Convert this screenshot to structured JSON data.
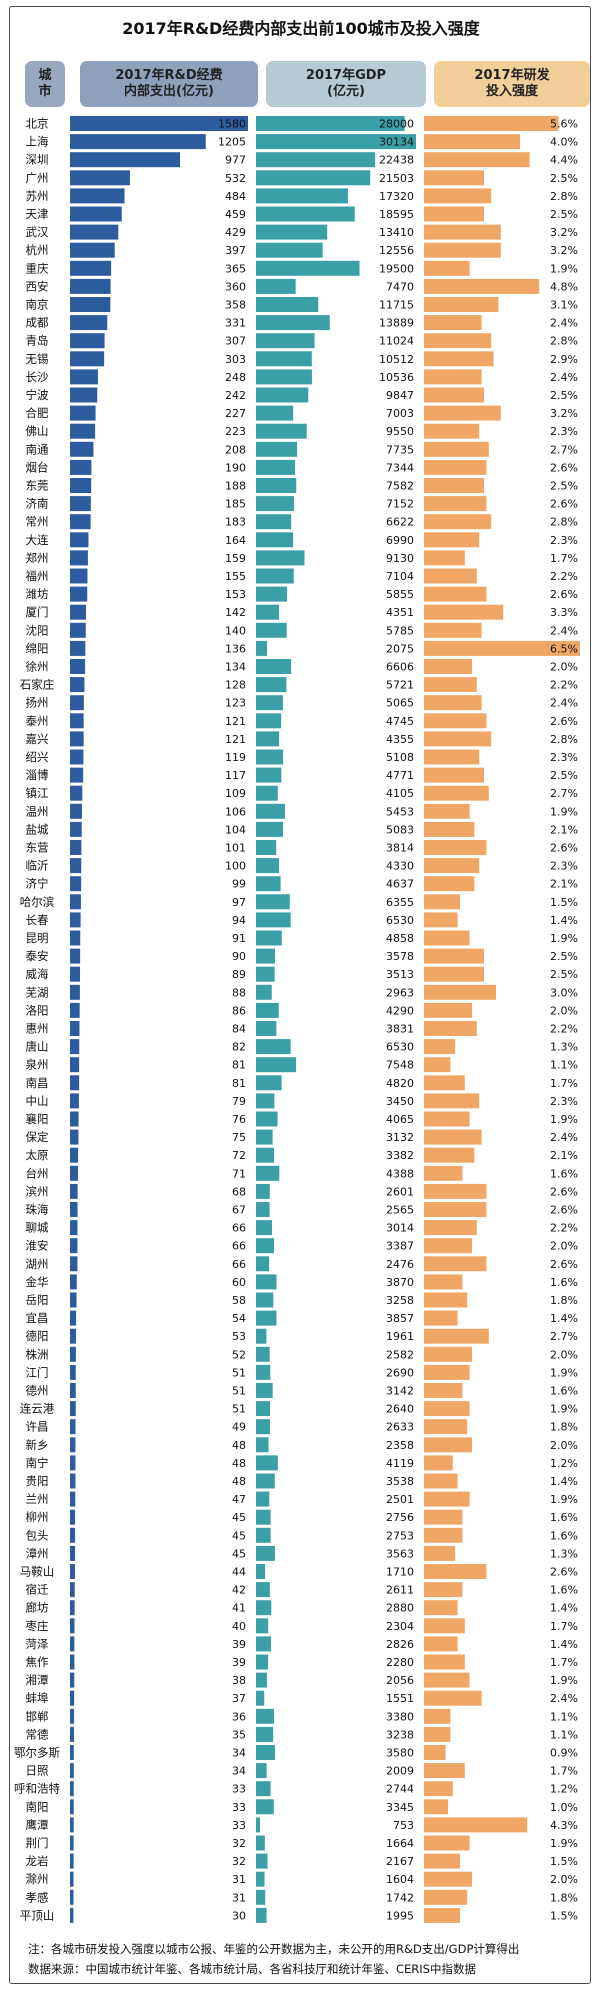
{
  "title": "2017年R&D经费内部支出前100城市及投入强度",
  "headers": {
    "city": "城\n市",
    "rd": "2017年R&D经费\n内部支出(亿元)",
    "gdp": "2017年GDP\n(亿元)",
    "intensity": "2017年研发\n投入强度"
  },
  "colors": {
    "rd_bar": "#2d5c9e",
    "gdp_bar": "#3b9fa8",
    "intensity_bar": "#f0a766"
  },
  "chart_data": {
    "type": "bar",
    "title": "2017年R&D经费内部支出前100城市及投入强度",
    "categories": [
      "北京",
      "上海",
      "深圳",
      "广州",
      "苏州",
      "天津",
      "武汉",
      "杭州",
      "重庆",
      "西安",
      "南京",
      "成都",
      "青岛",
      "无锡",
      "长沙",
      "宁波",
      "合肥",
      "佛山",
      "南通",
      "烟台",
      "东莞",
      "济南",
      "常州",
      "大连",
      "郑州",
      "福州",
      "潍坊",
      "厦门",
      "沈阳",
      "绵阳",
      "徐州",
      "石家庄",
      "扬州",
      "泰州",
      "嘉兴",
      "绍兴",
      "淄博",
      "镇江",
      "温州",
      "盐城",
      "东营",
      "临沂",
      "济宁",
      "哈尔滨",
      "长春",
      "昆明",
      "泰安",
      "威海",
      "芜湖",
      "洛阳",
      "惠州",
      "唐山",
      "泉州",
      "南昌",
      "中山",
      "襄阳",
      "保定",
      "太原",
      "台州",
      "滨州",
      "珠海",
      "聊城",
      "淮安",
      "湖州",
      "金华",
      "岳阳",
      "宜昌",
      "德阳",
      "株洲",
      "江门",
      "德州",
      "连云港",
      "许昌",
      "新乡",
      "南宁",
      "贵阳",
      "兰州",
      "柳州",
      "包头",
      "漳州",
      "马鞍山",
      "宿迁",
      "廊坊",
      "枣庄",
      "菏泽",
      "焦作",
      "湘潭",
      "蚌埠",
      "邯郸",
      "常德",
      "鄂尔多斯",
      "日照",
      "呼和浩特",
      "南阳",
      "鹰潭",
      "荆门",
      "龙岩",
      "滁州",
      "孝感",
      "平顶山"
    ],
    "series": [
      {
        "name": "2017年R&D经费内部支出(亿元)",
        "values": [
          1580,
          1205,
          977,
          532,
          484,
          459,
          429,
          397,
          365,
          360,
          358,
          331,
          307,
          303,
          248,
          242,
          227,
          223,
          208,
          190,
          188,
          185,
          183,
          164,
          159,
          155,
          153,
          142,
          140,
          136,
          134,
          128,
          123,
          121,
          121,
          119,
          117,
          109,
          106,
          104,
          101,
          100,
          99,
          97,
          94,
          91,
          90,
          89,
          88,
          86,
          84,
          82,
          81,
          81,
          79,
          76,
          75,
          72,
          71,
          68,
          67,
          66,
          66,
          66,
          60,
          58,
          54,
          53,
          52,
          51,
          51,
          51,
          49,
          48,
          48,
          48,
          47,
          45,
          45,
          45,
          44,
          42,
          41,
          40,
          39,
          39,
          38,
          37,
          36,
          35,
          34,
          34,
          33,
          33,
          33,
          32,
          32,
          31,
          31,
          30
        ]
      },
      {
        "name": "2017年GDP(亿元)",
        "values": [
          28000,
          30134,
          22438,
          21503,
          17320,
          18595,
          13410,
          12556,
          19500,
          7470,
          11715,
          13889,
          11024,
          10512,
          10536,
          9847,
          7003,
          9550,
          7735,
          7344,
          7582,
          7152,
          6622,
          6990,
          9130,
          7104,
          5855,
          4351,
          5785,
          2075,
          6606,
          5721,
          5065,
          4745,
          4355,
          5108,
          4771,
          4105,
          5453,
          5083,
          3814,
          4330,
          4637,
          6355,
          6530,
          4858,
          3578,
          3513,
          2963,
          4290,
          3831,
          6530,
          7548,
          4820,
          3450,
          4065,
          3132,
          3382,
          4388,
          2601,
          2565,
          3014,
          3387,
          2476,
          3870,
          3258,
          3857,
          1961,
          2582,
          2690,
          3142,
          2640,
          2633,
          2358,
          4119,
          3538,
          2501,
          2756,
          2753,
          3563,
          1710,
          2611,
          2880,
          2304,
          2826,
          2280,
          2056,
          1551,
          3380,
          3238,
          3580,
          2009,
          2744,
          3345,
          753,
          1664,
          2167,
          1604,
          1742,
          1995
        ]
      },
      {
        "name": "2017年研发投入强度",
        "values": [
          5.6,
          4.0,
          4.4,
          2.5,
          2.8,
          2.5,
          3.2,
          3.2,
          1.9,
          4.8,
          3.1,
          2.4,
          2.8,
          2.9,
          2.4,
          2.5,
          3.2,
          2.3,
          2.7,
          2.6,
          2.5,
          2.6,
          2.8,
          2.3,
          1.7,
          2.2,
          2.6,
          3.3,
          2.4,
          6.5,
          2.0,
          2.2,
          2.4,
          2.6,
          2.8,
          2.3,
          2.5,
          2.7,
          1.9,
          2.1,
          2.6,
          2.3,
          2.1,
          1.5,
          1.4,
          1.9,
          2.5,
          2.5,
          3.0,
          2.0,
          2.2,
          1.3,
          1.1,
          1.7,
          2.3,
          1.9,
          2.4,
          2.1,
          1.6,
          2.6,
          2.6,
          2.2,
          2.0,
          2.6,
          1.6,
          1.8,
          1.4,
          2.7,
          2.0,
          1.9,
          1.6,
          1.9,
          1.8,
          2.0,
          1.2,
          1.4,
          1.9,
          1.6,
          1.6,
          1.3,
          2.6,
          1.6,
          1.4,
          1.7,
          1.4,
          1.7,
          1.9,
          2.4,
          1.1,
          1.1,
          0.9,
          1.7,
          1.2,
          1.0,
          4.3,
          1.9,
          1.5,
          2.0,
          1.8,
          1.5
        ]
      }
    ],
    "value_labels": {
      "intensity": [
        "5.6%",
        "4.0%",
        "4.4%",
        "2.5%",
        "2.8%",
        "2.5%",
        "3.2%",
        "3.2%",
        "1.9%",
        "4.8%",
        "3.1%",
        "2.4%",
        "2.8%",
        "2.9%",
        "2.4%",
        "2.5%",
        "3.2%",
        "2.3%",
        "2.7%",
        "2.6%",
        "2.5%",
        "2.6%",
        "2.8%",
        "2.3%",
        "1.7%",
        "2.2%",
        "2.6%",
        "3.3%",
        "2.4%",
        "6.5%",
        "2.0%",
        "2.2%",
        "2.4%",
        "2.6%",
        "2.8%",
        "2.3%",
        "2.5%",
        "2.7%",
        "1.9%",
        "2.1%",
        "2.6%",
        "2.3%",
        "2.1%",
        "1.5%",
        "1.4%",
        "1.9%",
        "2.5%",
        "2.5%",
        "3.0%",
        "2.0%",
        "2.2%",
        "1.3%",
        "1.1%",
        "1.7%",
        "2.3%",
        "1.9%",
        "2.4%",
        "2.1%",
        "1.6%",
        "2.6%",
        "2.6%",
        "2.2%",
        "2.0%",
        "2.6%",
        "1.6%",
        "1.8%",
        "1.4%",
        "2.7%",
        "2.0%",
        "1.9%",
        "1.6%",
        "1.9%",
        "1.8%",
        "2.0%",
        "1.2%",
        "1.4%",
        "1.9%",
        "1.6%",
        "1.6%",
        "1.3%",
        "2.6%",
        "1.6%",
        "1.4%",
        "1.7%",
        "1.4%",
        "1.7%",
        "1.9%",
        "2.4%",
        "1.1%",
        "1.1%",
        "0.9%",
        "1.7%",
        "1.2%",
        "1.0%",
        "4.3%",
        "1.9%",
        "1.5%",
        "2.0%",
        "1.8%",
        "1.5%"
      ]
    },
    "xlim_rd": [
      0,
      1580
    ],
    "xlim_gdp": [
      0,
      30134
    ],
    "xlim_intensity": [
      0,
      6.5
    ]
  },
  "footer": {
    "note": "注：各城市研发投入强度以城市公报、年鉴的公开数据为主，未公开的用R&D支出/GDP计算得出",
    "source": "数据来源：中国城市统计年鉴、各城市统计局、各省科技厅和统计年鉴、CERIS中指数据"
  }
}
